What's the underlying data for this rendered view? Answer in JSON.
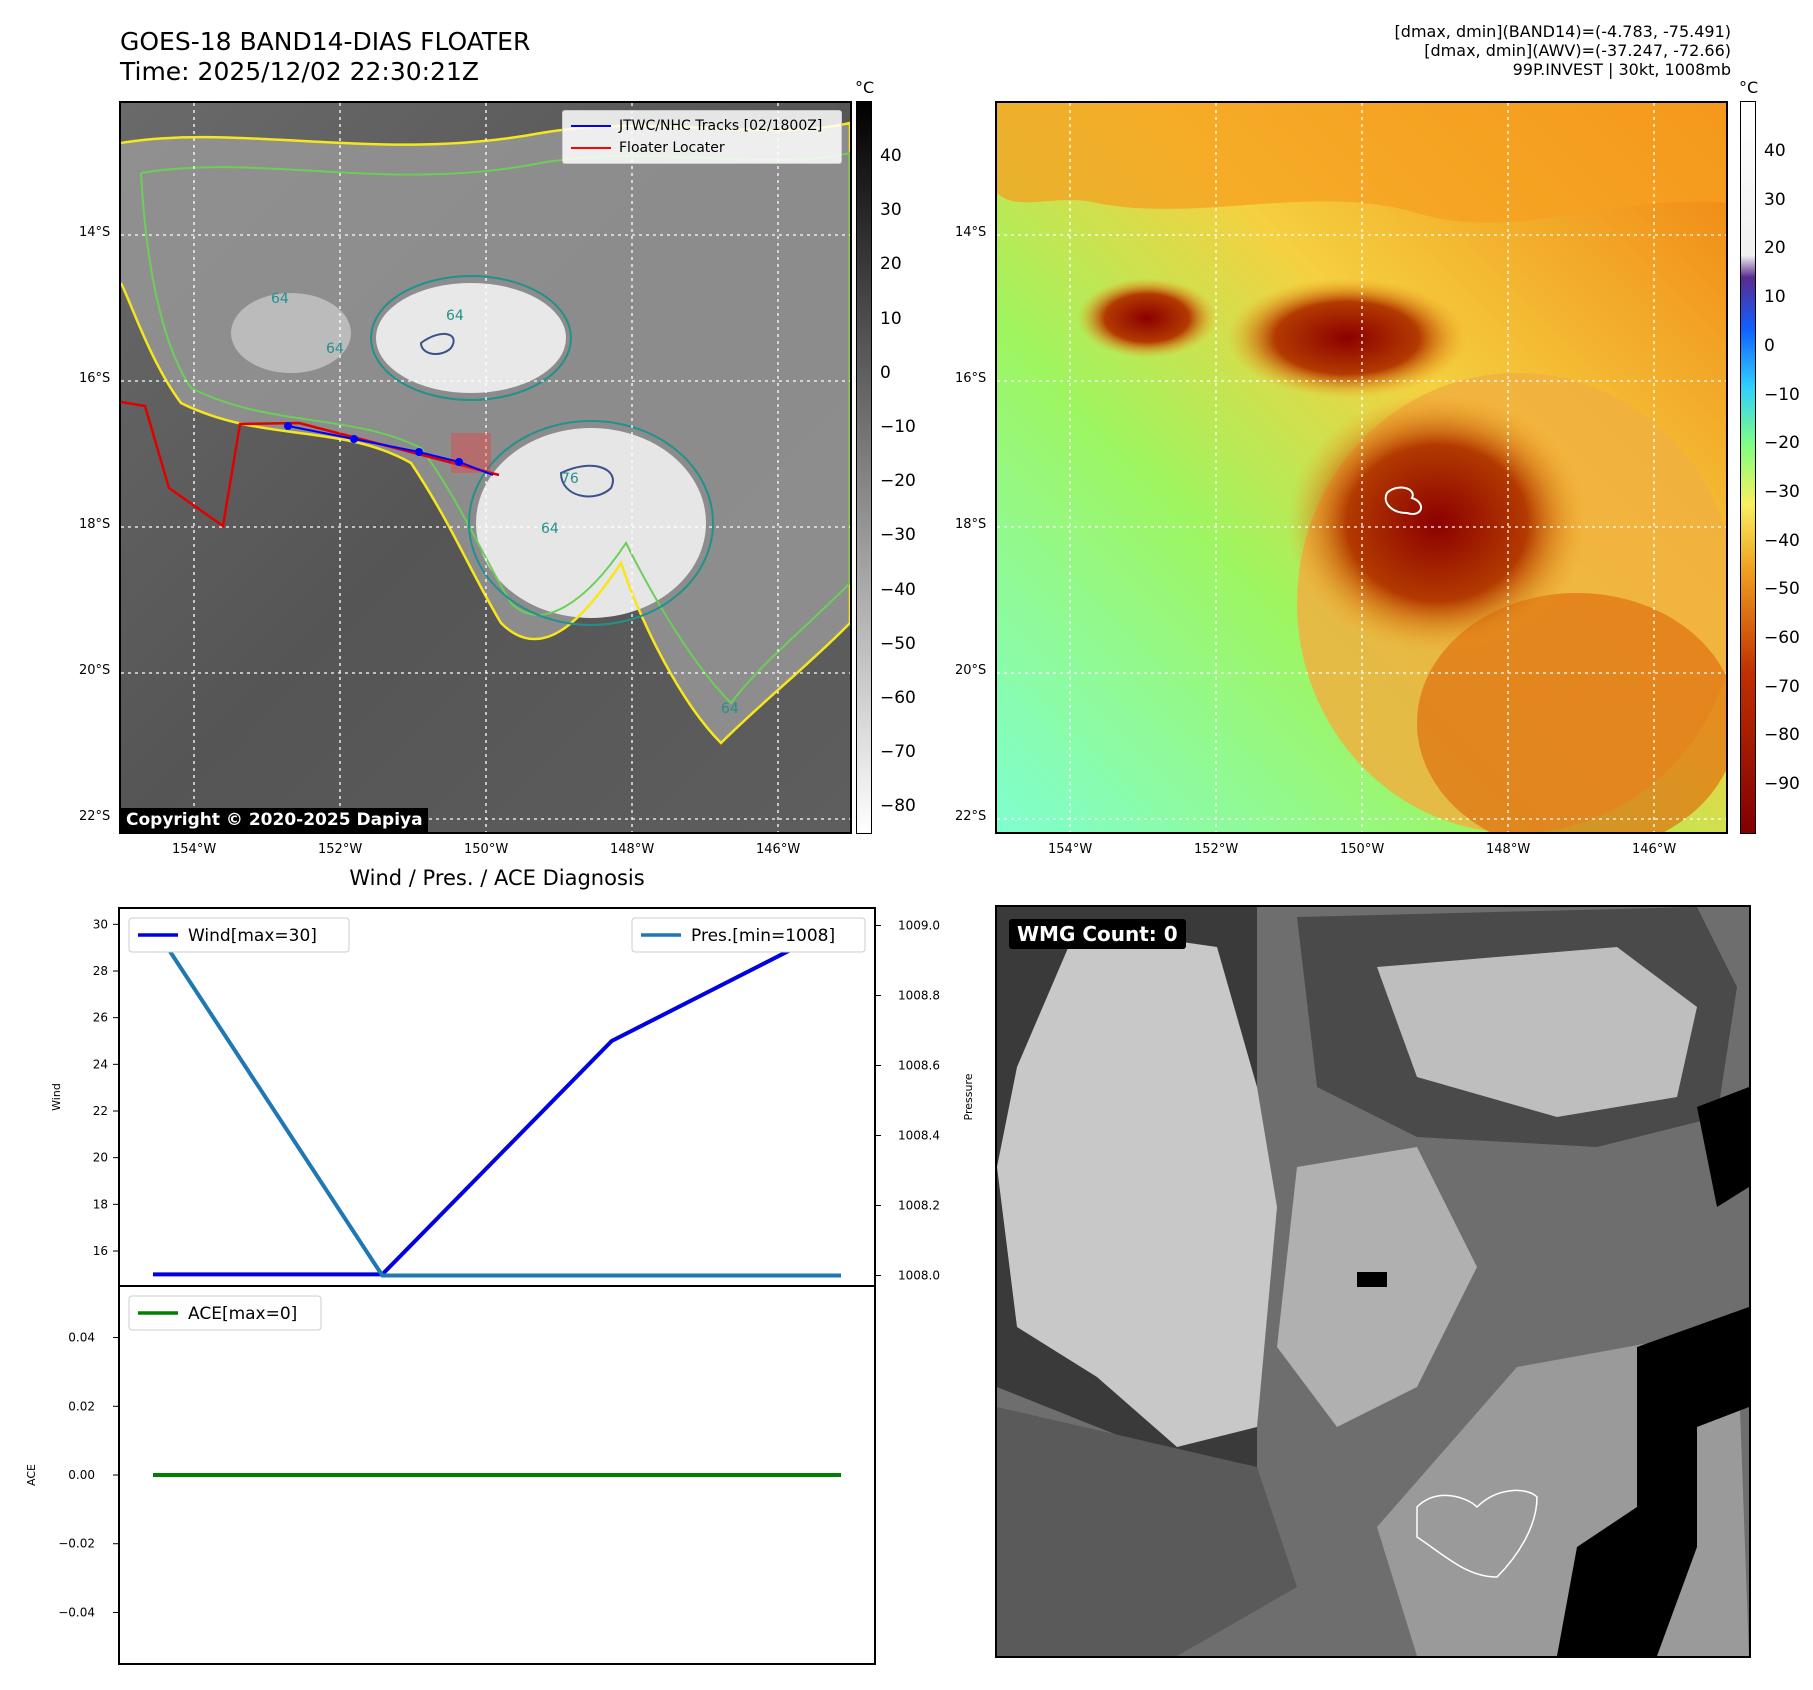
{
  "header": {
    "title_line1": "GOES-18 BAND14-DIAS FLOATER",
    "title_line2": "Time: 2025/12/02 22:30:21Z",
    "info_line1": "[dmax, dmin](BAND14)=(-4.783, -75.491)",
    "info_line2": "[dmax, dmin](AWV)=(-37.247, -72.66)",
    "info_line3": "99P.INVEST | 30kt, 1008mb"
  },
  "map_axes": {
    "lat_labels": [
      "14°S",
      "16°S",
      "18°S",
      "20°S",
      "22°S"
    ],
    "lon_labels": [
      "154°W",
      "152°W",
      "150°W",
      "148°W",
      "146°W"
    ]
  },
  "panel_ir": {
    "colorbar_unit": "°C",
    "colorbar_ticks": [
      "40",
      "30",
      "20",
      "10",
      "0",
      "−10",
      "−20",
      "−30",
      "−40",
      "−50",
      "−60",
      "−70",
      "−80"
    ],
    "legend": [
      {
        "label": "JTWC/NHC Tracks [02/1800Z]",
        "color": "#0000ff"
      },
      {
        "label": "Floater Locater",
        "color": "#ff0000"
      }
    ],
    "contour_labels": [
      "64",
      "64",
      "64",
      "64",
      "76",
      "64"
    ],
    "copyright": "Copyright © 2020-2025 Dapiya"
  },
  "panel_color": {
    "colorbar_unit": "°C",
    "colorbar_ticks": [
      "40",
      "30",
      "20",
      "10",
      "0",
      "−10",
      "−20",
      "−30",
      "−40",
      "−50",
      "−60",
      "−70",
      "−80",
      "−90"
    ]
  },
  "panel_wmg": {
    "label": "WMG Count: 0"
  },
  "diagnosis": {
    "title": "Wind / Pres. / ACE Diagnosis",
    "ylabel_wind": "Wind",
    "ylabel_pressure": "Pressure",
    "ylabel_ace": "ACE",
    "wind_ticks": [
      "30",
      "28",
      "26",
      "24",
      "22",
      "20",
      "18",
      "16"
    ],
    "pressure_ticks": [
      "1009.0",
      "1008.8",
      "1008.6",
      "1008.4",
      "1008.2",
      "1008.0"
    ],
    "ace_ticks": [
      "0.04",
      "0.02",
      "0.00",
      "−0.02",
      "−0.04"
    ],
    "legend_wind": "Wind[max=30]",
    "legend_pressure": "Pres.[min=1008]",
    "legend_ace": "ACE[max=0]"
  },
  "chart_data": [
    {
      "type": "line",
      "title": "Wind / Pres. / ACE Diagnosis",
      "x": [
        0,
        1,
        2,
        3
      ],
      "series": [
        {
          "name": "Wind[max=30]",
          "axis": "left",
          "color": "#0000e0",
          "values": [
            15,
            15,
            25,
            30
          ]
        },
        {
          "name": "Pres.[min=1008]",
          "axis": "right",
          "color": "#1f77b4",
          "values": [
            1009.0,
            1008.0,
            1008.0,
            1008.0
          ]
        }
      ],
      "ylabel": "Wind",
      "ylim": [
        14.5,
        30.7
      ],
      "y2label": "Pressure",
      "y2lim": [
        1007.97,
        1009.05
      ]
    },
    {
      "type": "line",
      "x": [
        0,
        1,
        2,
        3
      ],
      "series": [
        {
          "name": "ACE[max=0]",
          "color": "#008000",
          "values": [
            0,
            0,
            0,
            0
          ]
        }
      ],
      "ylabel": "ACE",
      "ylim": [
        -0.055,
        0.055
      ]
    }
  ]
}
